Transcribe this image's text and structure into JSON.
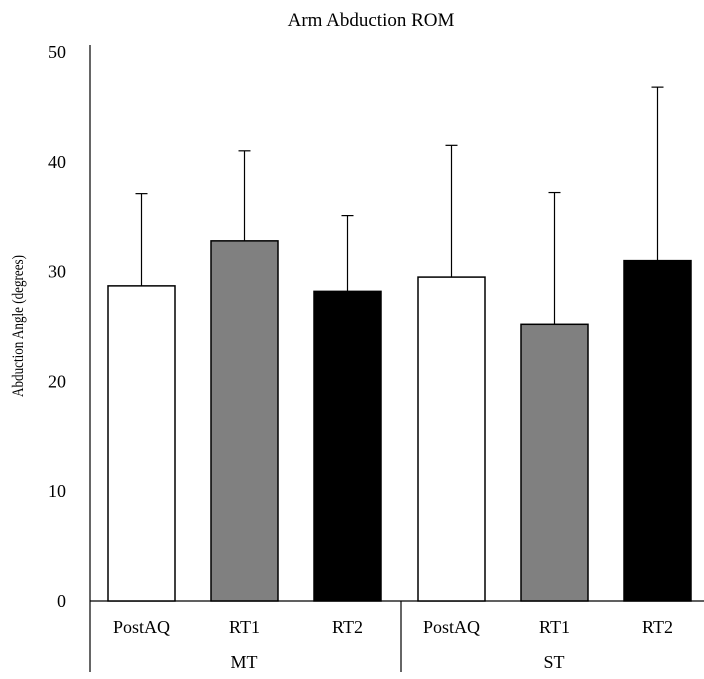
{
  "chart_data": {
    "type": "bar",
    "title": "Arm Abduction ROM",
    "ylabel": "Abduction Angle (degrees)",
    "xlabel": "",
    "ylim": [
      0,
      50
    ],
    "yticks": [
      0,
      10,
      20,
      30,
      40,
      50
    ],
    "groups": [
      {
        "name": "MT",
        "bars": [
          {
            "label": "PostAQ",
            "value": 28.7,
            "error": 8.4,
            "color": "#ffffff"
          },
          {
            "label": "RT1",
            "value": 32.8,
            "error": 8.2,
            "color": "#808080"
          },
          {
            "label": "RT2",
            "value": 28.2,
            "error": 6.9,
            "color": "#000000"
          }
        ]
      },
      {
        "name": "ST",
        "bars": [
          {
            "label": "PostAQ",
            "value": 29.5,
            "error": 12.0,
            "color": "#ffffff"
          },
          {
            "label": "RT1",
            "value": 25.2,
            "error": 12.0,
            "color": "#808080"
          },
          {
            "label": "RT2",
            "value": 31.0,
            "error": 15.8,
            "color": "#000000"
          }
        ]
      }
    ],
    "grid": false,
    "error_bars": "upper"
  }
}
